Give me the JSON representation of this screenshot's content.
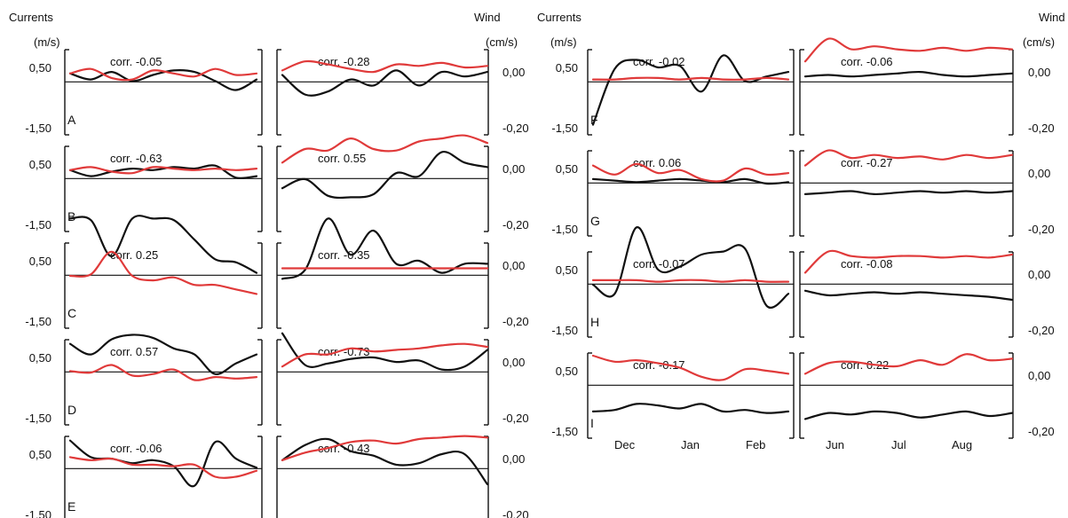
{
  "headers": {
    "left_title": "Currents",
    "left_units": "(m/s)",
    "right_title": "Wind",
    "right_units": "(cm/s)"
  },
  "chart_data": {
    "type": "line",
    "series_legend": [
      {
        "role": "currents",
        "color": "#111111"
      },
      {
        "role": "wind",
        "color": "#e03a3a"
      }
    ],
    "axes": {
      "left_ticks": [
        "0,50",
        "-1,50"
      ],
      "right_ticks": [
        "0,00",
        "-0,20"
      ]
    },
    "months": {
      "winter": [
        "Dec",
        "Jan",
        "Feb"
      ],
      "summer": [
        "Jun",
        "Jul",
        "Aug"
      ]
    },
    "columns": [
      {
        "rows": [
          {
            "letter": "A",
            "winter": {
              "corr": "corr. -0.05",
              "black": [
                0.3,
                0.1,
                0.35,
                0.05,
                0.25,
                0.4,
                0.35,
                0.05,
                -0.25,
                0.1
              ],
              "red": [
                0.3,
                0.45,
                0.15,
                0.1,
                0.4,
                0.3,
                0.2,
                0.45,
                0.25,
                0.3
              ]
            },
            "summer": {
              "corr": "corr. -0.28",
              "black": [
                0.25,
                -0.4,
                -0.3,
                0.1,
                -0.1,
                0.4,
                -0.1,
                0.35,
                0.2,
                0.35
              ],
              "red": [
                0.4,
                0.7,
                0.6,
                0.45,
                0.35,
                0.6,
                0.55,
                0.65,
                0.5,
                0.55
              ]
            }
          },
          {
            "letter": "B",
            "winter": {
              "corr": "corr. -0.63",
              "black": [
                0.3,
                0.1,
                0.25,
                0.35,
                0.3,
                0.4,
                0.35,
                0.45,
                0.05,
                0.1
              ],
              "red": [
                0.3,
                0.4,
                0.25,
                0.2,
                0.4,
                0.35,
                0.3,
                0.35,
                0.3,
                0.35
              ]
            },
            "summer": {
              "corr": "corr. 0.55",
              "black": [
                -0.3,
                0.0,
                -0.55,
                -0.6,
                -0.5,
                0.2,
                0.1,
                0.9,
                0.55,
                0.4
              ],
              "red": [
                0.55,
                1.0,
                0.95,
                1.35,
                1.0,
                0.95,
                1.25,
                1.35,
                1.45,
                1.2
              ]
            }
          },
          {
            "letter": "C",
            "winter": {
              "corr": "corr. 0.25",
              "black": [
                1.9,
                1.85,
                0.65,
                1.9,
                1.9,
                1.85,
                1.2,
                0.55,
                0.45,
                0.1
              ],
              "red": [
                0.0,
                0.05,
                0.8,
                0.0,
                -0.15,
                -0.05,
                -0.3,
                -0.3,
                -0.45,
                -0.6
              ]
            },
            "summer": {
              "corr": "corr. -0.35",
              "black": [
                -0.1,
                0.2,
                1.9,
                0.7,
                1.5,
                0.4,
                0.5,
                0.1,
                0.4,
                0.4
              ],
              "red": [
                0.25,
                0.25,
                0.25,
                0.25,
                0.25,
                0.25,
                0.25,
                0.25,
                0.25,
                0.25
              ]
            }
          },
          {
            "letter": "D",
            "winter": {
              "corr": "corr. 0.57",
              "black": [
                0.95,
                0.6,
                1.1,
                1.25,
                1.15,
                0.8,
                0.6,
                -0.05,
                0.3,
                0.6
              ],
              "red": [
                0.05,
                0.0,
                0.25,
                -0.1,
                -0.05,
                0.1,
                -0.25,
                -0.15,
                -0.2,
                -0.15
              ]
            },
            "summer": {
              "corr": "corr. -0.73",
              "black": [
                1.3,
                0.25,
                0.3,
                0.45,
                0.5,
                0.35,
                0.4,
                0.1,
                0.2,
                0.75
              ],
              "red": [
                0.2,
                0.6,
                0.6,
                0.8,
                0.7,
                0.75,
                0.8,
                0.9,
                0.95,
                0.85
              ]
            }
          },
          {
            "letter": "E",
            "winter": {
              "corr": "corr. -0.06",
              "black": [
                0.95,
                0.4,
                0.35,
                0.2,
                0.3,
                0.1,
                -0.55,
                0.9,
                0.35,
                0.05
              ],
              "red": [
                0.4,
                0.3,
                0.35,
                0.15,
                0.15,
                0.1,
                0.15,
                -0.25,
                -0.25,
                -0.05
              ]
            },
            "summer": {
              "corr": "corr. -0.43",
              "black": [
                0.3,
                0.8,
                1.0,
                0.6,
                0.45,
                0.15,
                0.2,
                0.5,
                0.5,
                -0.5
              ],
              "red": [
                0.3,
                0.55,
                0.7,
                0.9,
                0.95,
                0.85,
                1.0,
                1.05,
                1.1,
                1.05
              ]
            }
          }
        ]
      },
      {
        "rows": [
          {
            "letter": "F",
            "winter": {
              "corr": "corr. -0.02",
              "black": [
                -1.4,
                0.45,
                0.75,
                0.5,
                0.55,
                -0.3,
                0.9,
                0.05,
                0.2,
                0.35
              ],
              "red": [
                0.1,
                0.1,
                0.15,
                0.15,
                0.1,
                0.15,
                0.1,
                0.1,
                0.15,
                0.1
              ]
            },
            "summer": {
              "corr": "corr. -0.06",
              "black": [
                0.2,
                0.25,
                0.2,
                0.25,
                0.3,
                0.35,
                0.25,
                0.2,
                0.25,
                0.3
              ],
              "red": [
                0.7,
                1.45,
                1.1,
                1.2,
                1.1,
                1.05,
                1.15,
                1.05,
                1.15,
                1.1
              ]
            }
          },
          {
            "letter": "G",
            "winter": {
              "corr": "corr. 0.06",
              "black": [
                0.15,
                0.1,
                0.05,
                0.1,
                0.15,
                0.1,
                0.05,
                0.15,
                0.0,
                0.05
              ],
              "red": [
                0.6,
                0.3,
                0.65,
                0.35,
                0.45,
                0.15,
                0.1,
                0.5,
                0.3,
                0.35
              ]
            },
            "summer": {
              "corr": "corr. -0.27",
              "black": [
                -0.35,
                -0.3,
                -0.25,
                -0.35,
                -0.3,
                -0.25,
                -0.3,
                -0.25,
                -0.3,
                -0.25
              ],
              "red": [
                0.6,
                1.1,
                0.85,
                0.95,
                0.85,
                0.9,
                0.8,
                0.95,
                0.85,
                0.95
              ]
            }
          },
          {
            "letter": "H",
            "winter": {
              "corr": "corr. -0.07",
              "black": [
                0.0,
                -0.3,
                1.9,
                0.5,
                0.6,
                1.0,
                1.1,
                1.2,
                -0.7,
                -0.3
              ],
              "red": [
                0.15,
                0.15,
                0.15,
                0.1,
                0.15,
                0.15,
                0.1,
                0.15,
                0.1,
                0.1
              ]
            },
            "summer": {
              "corr": "corr. -0.08",
              "black": [
                -0.2,
                -0.35,
                -0.3,
                -0.25,
                -0.3,
                -0.25,
                -0.3,
                -0.35,
                -0.4,
                -0.5
              ],
              "red": [
                0.4,
                1.1,
                0.95,
                0.9,
                0.95,
                0.95,
                0.9,
                0.95,
                0.9,
                1.0
              ]
            }
          },
          {
            "letter": "I",
            "winter": {
              "corr": "corr. -0.17",
              "black": [
                -0.85,
                -0.8,
                -0.6,
                -0.65,
                -0.75,
                -0.6,
                -0.85,
                -0.8,
                -0.9,
                -0.85
              ],
              "red": [
                1.0,
                0.8,
                0.85,
                0.75,
                0.6,
                0.3,
                0.2,
                0.55,
                0.5,
                0.4
              ]
            },
            "summer": {
              "corr": "corr. 0.22",
              "black": [
                -1.1,
                -0.9,
                -0.95,
                -0.85,
                -0.9,
                -1.05,
                -0.95,
                -0.85,
                -1.0,
                -0.9
              ],
              "red": [
                0.4,
                0.75,
                0.8,
                0.7,
                0.65,
                0.85,
                0.7,
                1.05,
                0.85,
                0.9
              ]
            }
          }
        ]
      }
    ]
  }
}
